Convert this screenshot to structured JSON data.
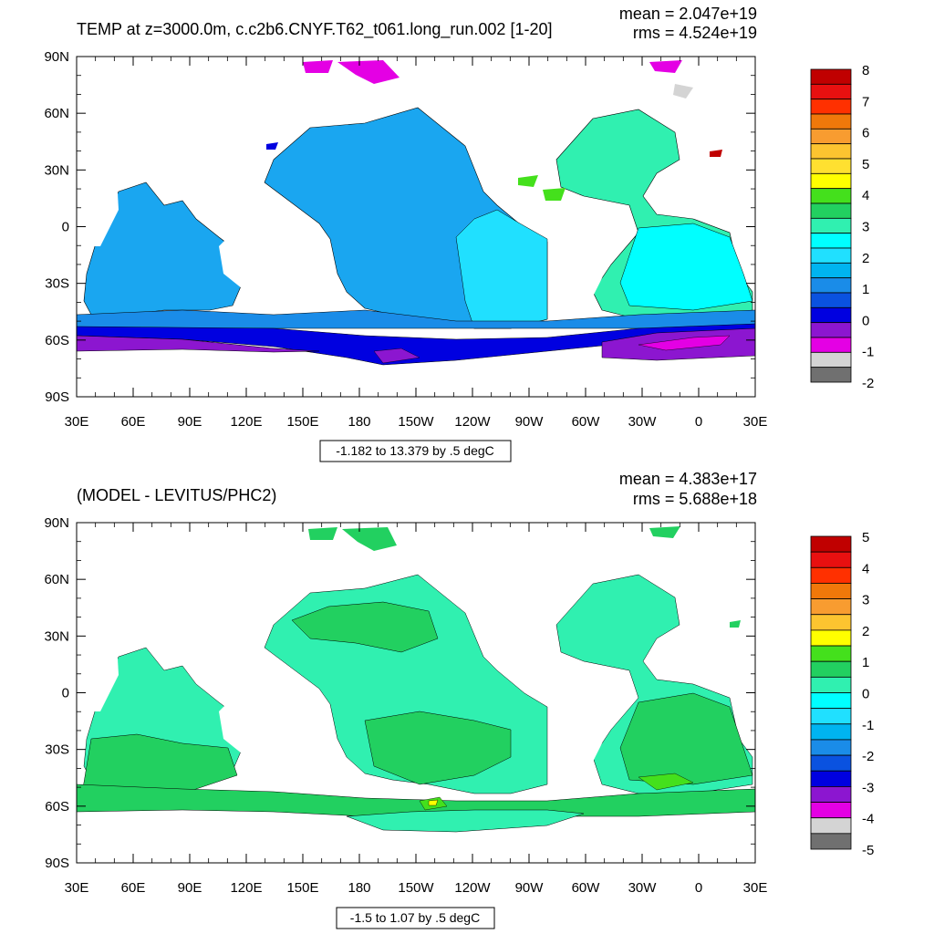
{
  "panels": [
    {
      "title": "TEMP at z=3000.0m, c.c2b6.CNYF.T62_t061.long_run.002 [1-20]",
      "mean": "mean = 2.047e+19",
      "rms": "rms = 4.524e+19",
      "contour_info": "-1.182 to 13.379 by .5 degC",
      "colorbar_labels": [
        "8",
        "7",
        "6",
        "5",
        "4",
        "3",
        "2",
        "1",
        "0",
        "-1",
        "-2"
      ],
      "colorbar_colors": [
        "#c00000",
        "#e81010",
        "#ff3000",
        "#f0780a",
        "#f89c30",
        "#fcc430",
        "#ffe030",
        "#ffff00",
        "#44e01c",
        "#22d060",
        "#30f0b0",
        "#00ffff",
        "#20e0ff",
        "#00b4f0",
        "#1a8ce8",
        "#0a52e0",
        "#0000e0",
        "#8c16d0",
        "#e400e4",
        "#d4d4d4",
        "#707070"
      ]
    },
    {
      "title": "(MODEL - LEVITUS/PHC2)",
      "mean": "mean = 4.383e+17",
      "rms": "rms = 5.688e+18",
      "contour_info": "-1.5 to 1.07 by .5 degC",
      "colorbar_labels": [
        "5",
        "4",
        "3",
        "2",
        "1",
        "0",
        "-1",
        "-2",
        "-3",
        "-4",
        "-5"
      ],
      "colorbar_colors": [
        "#c00000",
        "#e81010",
        "#ff3000",
        "#f0780a",
        "#f89c30",
        "#fcc430",
        "#ffff00",
        "#44e01c",
        "#22d060",
        "#30f0b0",
        "#00ffff",
        "#20e0ff",
        "#00b4f0",
        "#1a8ce8",
        "#0a52e0",
        "#0000e0",
        "#8c16d0",
        "#e400e4",
        "#d4d4d4",
        "#707070"
      ]
    }
  ],
  "chart_data": [
    {
      "type": "heatmap",
      "title": "TEMP at z=3000.0m, c.c2b6.CNYF.T62_t061.long_run.002 [1-20]",
      "xlabel": "",
      "ylabel": "",
      "x_tick_labels": [
        "30E",
        "60E",
        "90E",
        "120E",
        "150E",
        "180",
        "150W",
        "120W",
        "90W",
        "60W",
        "30W",
        "0",
        "30E"
      ],
      "y_tick_labels": [
        "90N",
        "60N",
        "30N",
        "0",
        "30S",
        "60S",
        "90S"
      ],
      "xlim": [
        30,
        390
      ],
      "ylim": [
        -90,
        90
      ],
      "colorbar_range": [
        -2,
        8
      ],
      "contour_interval": 0.5,
      "field_min": -1.182,
      "field_max": 13.379,
      "units": "degC",
      "mean": 2.047e+19,
      "rms": 4.524e+19
    },
    {
      "type": "heatmap",
      "title": "(MODEL - LEVITUS/PHC2)",
      "xlabel": "",
      "ylabel": "",
      "x_tick_labels": [
        "30E",
        "60E",
        "90E",
        "120E",
        "150E",
        "180",
        "150W",
        "120W",
        "90W",
        "60W",
        "30W",
        "0",
        "30E"
      ],
      "y_tick_labels": [
        "90N",
        "60N",
        "30N",
        "0",
        "30S",
        "60S",
        "90S"
      ],
      "xlim": [
        30,
        390
      ],
      "ylim": [
        -90,
        90
      ],
      "colorbar_range": [
        -5,
        5
      ],
      "contour_interval": 0.5,
      "field_min": -1.5,
      "field_max": 1.07,
      "units": "degC",
      "mean": 4.383e+17,
      "rms": 5.688e+18
    }
  ]
}
